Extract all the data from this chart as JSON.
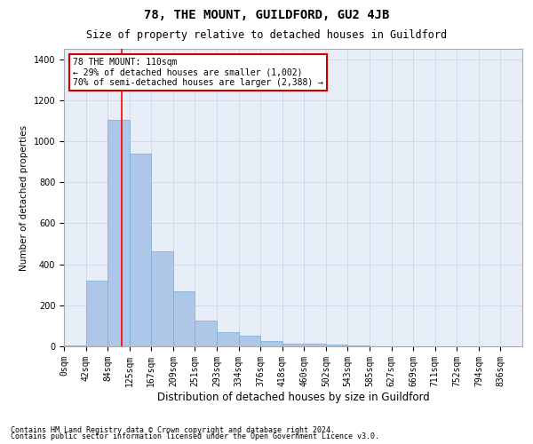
{
  "title": "78, THE MOUNT, GUILDFORD, GU2 4JB",
  "subtitle": "Size of property relative to detached houses in Guildford",
  "xlabel": "Distribution of detached houses by size in Guildford",
  "ylabel": "Number of detached properties",
  "footnote1": "Contains HM Land Registry data © Crown copyright and database right 2024.",
  "footnote2": "Contains public sector information licensed under the Open Government Licence v3.0.",
  "bar_labels": [
    "0sqm",
    "42sqm",
    "84sqm",
    "125sqm",
    "167sqm",
    "209sqm",
    "251sqm",
    "293sqm",
    "334sqm",
    "376sqm",
    "418sqm",
    "460sqm",
    "502sqm",
    "543sqm",
    "585sqm",
    "627sqm",
    "669sqm",
    "711sqm",
    "752sqm",
    "794sqm",
    "836sqm"
  ],
  "bar_values": [
    5,
    320,
    1105,
    940,
    465,
    270,
    125,
    70,
    50,
    25,
    15,
    15,
    10,
    5,
    0,
    0,
    0,
    0,
    0,
    0,
    0
  ],
  "bar_color": "#aec6e8",
  "bar_edge_color": "#7aadd4",
  "ylim": [
    0,
    1450
  ],
  "yticks": [
    0,
    200,
    400,
    600,
    800,
    1000,
    1200,
    1400
  ],
  "annotation_title": "78 THE MOUNT: 110sqm",
  "annotation_line1": "← 29% of detached houses are smaller (1,002)",
  "annotation_line2": "70% of semi-detached houses are larger (2,388) →",
  "annotation_box_color": "#ffffff",
  "annotation_box_edge": "#cc0000",
  "grid_color": "#d0d8e8",
  "background_color": "#e8eef8",
  "title_fontsize": 10,
  "subtitle_fontsize": 8.5,
  "ylabel_fontsize": 7.5,
  "xlabel_fontsize": 8.5,
  "tick_fontsize": 7,
  "annot_fontsize": 7,
  "footnote_fontsize": 6
}
